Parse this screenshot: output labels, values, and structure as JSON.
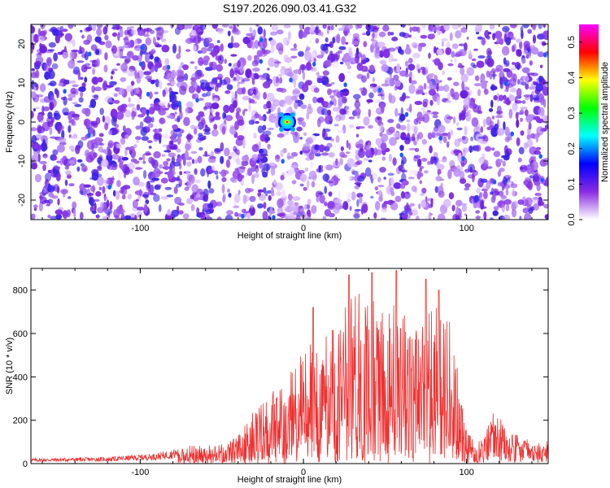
{
  "title": "S197.2026.090.03.41.G32",
  "chart_data": [
    {
      "type": "heatmap",
      "xlabel": "Height of straight line (km)",
      "ylabel": "Frequency (Hz)",
      "xlim": [
        -167,
        150
      ],
      "ylim": [
        -25,
        25
      ],
      "xticks": [
        -100,
        0,
        100
      ],
      "yticks": [
        -20,
        -10,
        0,
        10,
        20
      ],
      "colorbar": {
        "label": "Normalized spectral amplitude",
        "range": [
          0,
          0.55
        ],
        "ticks": [
          0.0,
          0.1,
          0.2,
          0.3,
          0.4,
          0.5
        ],
        "colors": [
          "#ffffff",
          "#8a2be2",
          "#0000ff",
          "#00ffff",
          "#00ff00",
          "#ffff00",
          "#ff0000",
          "#ff00ff"
        ]
      },
      "peak": {
        "x": -10,
        "y": 0,
        "value": 0.55
      }
    },
    {
      "type": "line",
      "xlabel": "Height of straight line (km)",
      "ylabel": "SNR (10 * v/v)",
      "xlim": [
        -167,
        150
      ],
      "ylim": [
        0,
        900
      ],
      "xticks": [
        -100,
        0,
        100
      ],
      "yticks": [
        0,
        200,
        400,
        600,
        800
      ],
      "color": "#ef3030",
      "envelope": {
        "x": [
          -167,
          -120,
          -90,
          -70,
          -50,
          -40,
          -30,
          -20,
          -10,
          0,
          10,
          20,
          30,
          40,
          50,
          60,
          70,
          80,
          90,
          95,
          100,
          105,
          110,
          118,
          125,
          135,
          140,
          150
        ],
        "y": [
          20,
          25,
          40,
          70,
          75,
          110,
          210,
          270,
          330,
          450,
          470,
          540,
          680,
          660,
          600,
          680,
          520,
          620,
          560,
          350,
          120,
          90,
          110,
          230,
          120,
          110,
          70,
          90
        ]
      },
      "peaks": [
        {
          "x": 28,
          "y": 870
        },
        {
          "x": 42,
          "y": 880
        },
        {
          "x": 57,
          "y": 890
        },
        {
          "x": 75,
          "y": 850
        },
        {
          "x": 83,
          "y": 800
        },
        {
          "x": 6,
          "y": 720
        }
      ]
    }
  ]
}
